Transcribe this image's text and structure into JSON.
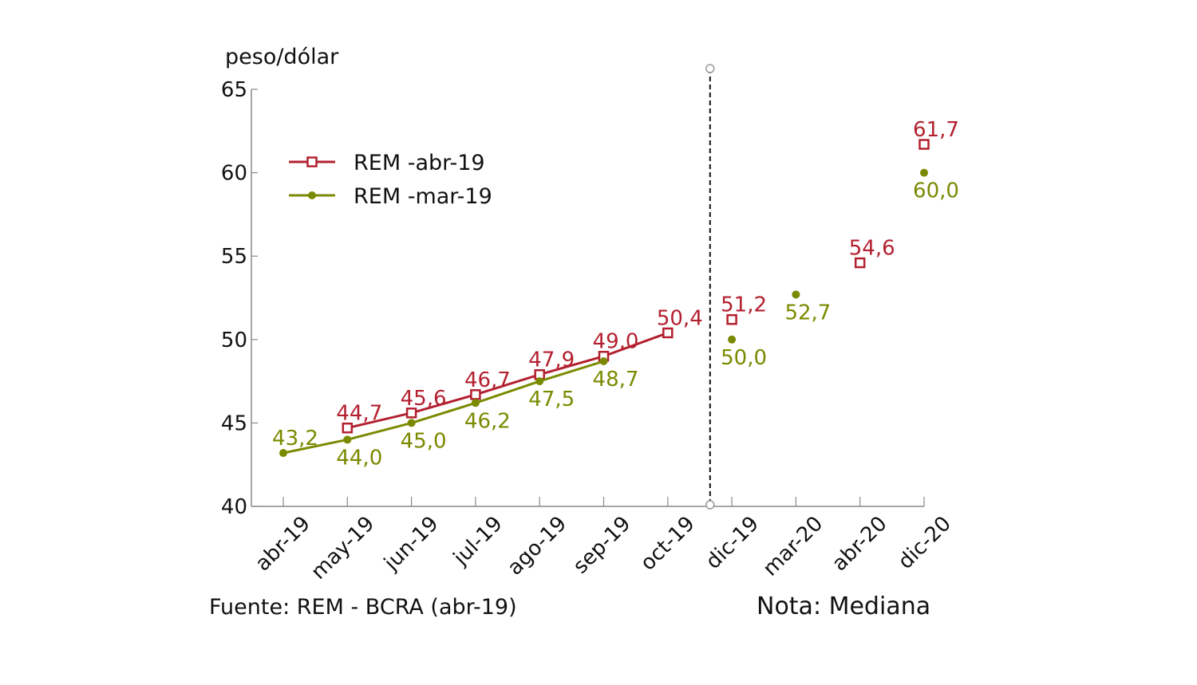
{
  "chart_data": {
    "type": "line",
    "ylabel": "peso/dólar",
    "ylim": [
      40,
      65
    ],
    "yticks": [
      "40",
      "45",
      "50",
      "55",
      "60",
      "65"
    ],
    "categories": [
      "abr-19",
      "may-19",
      "jun-19",
      "jul-19",
      "ago-19",
      "sep-19",
      "oct-19",
      "dic-19",
      "mar-20",
      "abr-20",
      "dic-20"
    ],
    "legend_position": "top-left",
    "grid": false,
    "series": [
      {
        "name": "REM -abr-19",
        "color": "#b3202f",
        "marker": "open-square",
        "values": [
          null,
          44.7,
          45.6,
          46.7,
          47.9,
          49.0,
          50.4,
          51.2,
          null,
          54.6,
          61.7
        ],
        "labels": [
          null,
          "44,7",
          "45,6",
          "46,7",
          "47,9",
          "49,0",
          "50,4",
          "51,2",
          null,
          "54,6",
          "61,7"
        ],
        "line_through": "oct-19"
      },
      {
        "name": "REM -mar-19",
        "color": "#7a8a00",
        "marker": "filled-circle",
        "values": [
          43.2,
          44.0,
          45.0,
          46.2,
          47.5,
          48.7,
          null,
          50.0,
          52.7,
          null,
          60.0
        ],
        "labels": [
          "43,2",
          "44,0",
          "45,0",
          "46,2",
          "47,5",
          "48,7",
          null,
          "50,0",
          "52,7",
          null,
          "60,0"
        ],
        "line_through": "sep-19"
      }
    ],
    "divider_after": "oct-19",
    "source": "Fuente: REM - BCRA (abr-19)",
    "note": "Nota: Mediana"
  }
}
